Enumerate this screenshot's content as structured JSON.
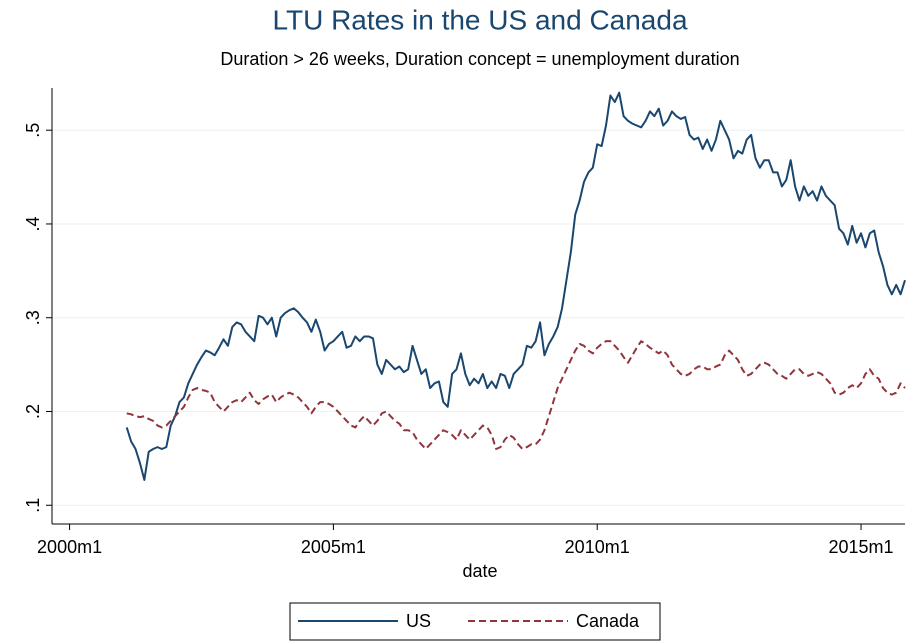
{
  "chart_data": {
    "type": "line",
    "title": "LTU Rates in the US and Canada",
    "subtitle": "Duration > 26 weeks, Duration concept = unemployment duration",
    "x_label": "date",
    "x": [
      "2001m2",
      "2001m3",
      "2001m4",
      "2001m5",
      "2001m6",
      "2001m7",
      "2001m8",
      "2001m9",
      "2001m10",
      "2001m11",
      "2001m12",
      "2002m1",
      "2002m2",
      "2002m3",
      "2002m4",
      "2002m5",
      "2002m6",
      "2002m7",
      "2002m8",
      "2002m9",
      "2002m10",
      "2002m11",
      "2002m12",
      "2003m1",
      "2003m2",
      "2003m3",
      "2003m4",
      "2003m5",
      "2003m6",
      "2003m7",
      "2003m8",
      "2003m9",
      "2003m10",
      "2003m11",
      "2003m12",
      "2004m1",
      "2004m2",
      "2004m3",
      "2004m4",
      "2004m5",
      "2004m6",
      "2004m7",
      "2004m8",
      "2004m9",
      "2004m10",
      "2004m11",
      "2004m12",
      "2005m1",
      "2005m2",
      "2005m3",
      "2005m4",
      "2005m5",
      "2005m6",
      "2005m7",
      "2005m8",
      "2005m9",
      "2005m10",
      "2005m11",
      "2005m12",
      "2006m1",
      "2006m2",
      "2006m3",
      "2006m4",
      "2006m5",
      "2006m6",
      "2006m7",
      "2006m8",
      "2006m9",
      "2006m10",
      "2006m11",
      "2006m12",
      "2007m1",
      "2007m2",
      "2007m3",
      "2007m4",
      "2007m5",
      "2007m6",
      "2007m7",
      "2007m8",
      "2007m9",
      "2007m10",
      "2007m11",
      "2007m12",
      "2008m1",
      "2008m2",
      "2008m3",
      "2008m4",
      "2008m5",
      "2008m6",
      "2008m7",
      "2008m8",
      "2008m9",
      "2008m10",
      "2008m11",
      "2008m12",
      "2009m1",
      "2009m2",
      "2009m3",
      "2009m4",
      "2009m5",
      "2009m6",
      "2009m7",
      "2009m8",
      "2009m9",
      "2009m10",
      "2009m11",
      "2009m12",
      "2010m1",
      "2010m2",
      "2010m3",
      "2010m4",
      "2010m5",
      "2010m6",
      "2010m7",
      "2010m8",
      "2010m9",
      "2010m10",
      "2010m11",
      "2010m12",
      "2011m1",
      "2011m2",
      "2011m3",
      "2011m4",
      "2011m5",
      "2011m6",
      "2011m7",
      "2011m8",
      "2011m9",
      "2011m10",
      "2011m11",
      "2011m12",
      "2012m1",
      "2012m2",
      "2012m3",
      "2012m4",
      "2012m5",
      "2012m6",
      "2012m7",
      "2012m8",
      "2012m9",
      "2012m10",
      "2012m11",
      "2012m12",
      "2013m1",
      "2013m2",
      "2013m3",
      "2013m4",
      "2013m5",
      "2013m6",
      "2013m7",
      "2013m8",
      "2013m9",
      "2013m10",
      "2013m11",
      "2013m12",
      "2014m1",
      "2014m2",
      "2014m3",
      "2014m4",
      "2014m5",
      "2014m6",
      "2014m7",
      "2014m8",
      "2014m9",
      "2014m10",
      "2014m11",
      "2014m12",
      "2015m1",
      "2015m2",
      "2015m3",
      "2015m4",
      "2015m5",
      "2015m6",
      "2015m7",
      "2015m8",
      "2015m9",
      "2015m10",
      "2015m11"
    ],
    "series": [
      {
        "name": "US",
        "color": "#1a476f",
        "style": "solid",
        "values": [
          0.183,
          0.168,
          0.16,
          0.145,
          0.127,
          0.157,
          0.16,
          0.162,
          0.16,
          0.162,
          0.185,
          0.195,
          0.21,
          0.215,
          0.23,
          0.24,
          0.25,
          0.258,
          0.265,
          0.263,
          0.26,
          0.268,
          0.277,
          0.27,
          0.29,
          0.295,
          0.293,
          0.285,
          0.28,
          0.275,
          0.302,
          0.3,
          0.293,
          0.3,
          0.28,
          0.3,
          0.305,
          0.308,
          0.31,
          0.306,
          0.3,
          0.295,
          0.285,
          0.298,
          0.285,
          0.265,
          0.272,
          0.275,
          0.28,
          0.285,
          0.268,
          0.27,
          0.28,
          0.275,
          0.28,
          0.28,
          0.278,
          0.25,
          0.24,
          0.255,
          0.25,
          0.245,
          0.248,
          0.242,
          0.245,
          0.27,
          0.255,
          0.24,
          0.245,
          0.225,
          0.23,
          0.232,
          0.21,
          0.205,
          0.24,
          0.245,
          0.262,
          0.24,
          0.228,
          0.235,
          0.23,
          0.24,
          0.225,
          0.232,
          0.225,
          0.24,
          0.238,
          0.225,
          0.24,
          0.245,
          0.25,
          0.27,
          0.268,
          0.275,
          0.295,
          0.26,
          0.272,
          0.28,
          0.29,
          0.31,
          0.34,
          0.37,
          0.41,
          0.425,
          0.445,
          0.455,
          0.46,
          0.485,
          0.483,
          0.505,
          0.537,
          0.53,
          0.54,
          0.515,
          0.51,
          0.507,
          0.505,
          0.503,
          0.51,
          0.52,
          0.515,
          0.523,
          0.505,
          0.51,
          0.52,
          0.515,
          0.512,
          0.514,
          0.495,
          0.49,
          0.492,
          0.48,
          0.49,
          0.478,
          0.49,
          0.51,
          0.5,
          0.49,
          0.47,
          0.478,
          0.475,
          0.49,
          0.495,
          0.47,
          0.46,
          0.468,
          0.468,
          0.455,
          0.455,
          0.44,
          0.447,
          0.468,
          0.44,
          0.425,
          0.44,
          0.43,
          0.435,
          0.425,
          0.44,
          0.43,
          0.425,
          0.42,
          0.395,
          0.39,
          0.378,
          0.398,
          0.38,
          0.39,
          0.375,
          0.39,
          0.393,
          0.37,
          0.355,
          0.335,
          0.325,
          0.335,
          0.325,
          0.34
        ]
      },
      {
        "name": "Canada",
        "color": "#90353b",
        "style": "dashed",
        "values": [
          0.198,
          0.197,
          0.195,
          0.194,
          0.195,
          0.192,
          0.19,
          0.185,
          0.183,
          0.185,
          0.19,
          0.195,
          0.2,
          0.205,
          0.215,
          0.223,
          0.225,
          0.223,
          0.222,
          0.22,
          0.21,
          0.205,
          0.2,
          0.205,
          0.21,
          0.212,
          0.21,
          0.215,
          0.22,
          0.212,
          0.208,
          0.213,
          0.216,
          0.218,
          0.21,
          0.215,
          0.218,
          0.22,
          0.218,
          0.215,
          0.21,
          0.205,
          0.198,
          0.205,
          0.21,
          0.21,
          0.208,
          0.205,
          0.2,
          0.195,
          0.19,
          0.185,
          0.183,
          0.19,
          0.195,
          0.19,
          0.185,
          0.19,
          0.198,
          0.2,
          0.195,
          0.19,
          0.187,
          0.18,
          0.18,
          0.178,
          0.17,
          0.165,
          0.16,
          0.165,
          0.17,
          0.175,
          0.18,
          0.178,
          0.175,
          0.17,
          0.18,
          0.175,
          0.17,
          0.175,
          0.18,
          0.185,
          0.183,
          0.175,
          0.16,
          0.162,
          0.17,
          0.175,
          0.172,
          0.165,
          0.16,
          0.162,
          0.165,
          0.165,
          0.17,
          0.18,
          0.195,
          0.21,
          0.225,
          0.235,
          0.245,
          0.255,
          0.265,
          0.272,
          0.27,
          0.265,
          0.262,
          0.268,
          0.272,
          0.275,
          0.275,
          0.27,
          0.265,
          0.258,
          0.252,
          0.26,
          0.268,
          0.275,
          0.272,
          0.268,
          0.265,
          0.262,
          0.265,
          0.26,
          0.25,
          0.245,
          0.24,
          0.238,
          0.24,
          0.245,
          0.248,
          0.248,
          0.245,
          0.245,
          0.248,
          0.25,
          0.26,
          0.265,
          0.26,
          0.255,
          0.245,
          0.238,
          0.24,
          0.245,
          0.25,
          0.252,
          0.25,
          0.245,
          0.24,
          0.238,
          0.235,
          0.24,
          0.245,
          0.245,
          0.24,
          0.238,
          0.24,
          0.242,
          0.24,
          0.235,
          0.23,
          0.22,
          0.218,
          0.22,
          0.225,
          0.228,
          0.225,
          0.23,
          0.24,
          0.245,
          0.238,
          0.235,
          0.225,
          0.22,
          0.218,
          0.22,
          0.23,
          0.225
        ]
      }
    ],
    "xlim": [
      "1999m9",
      "2015m11"
    ],
    "xticks": [
      "2000m1",
      "2005m1",
      "2010m1",
      "2015m1"
    ],
    "ylim": [
      0.08,
      0.545
    ],
    "yticks": [
      {
        "value": 0.1,
        "label": ".1"
      },
      {
        "value": 0.2,
        "label": ".2"
      },
      {
        "value": 0.3,
        "label": ".3"
      },
      {
        "value": 0.4,
        "label": ".4"
      },
      {
        "value": 0.5,
        "label": ".5"
      }
    ],
    "grid": true,
    "legend": "bottom"
  }
}
